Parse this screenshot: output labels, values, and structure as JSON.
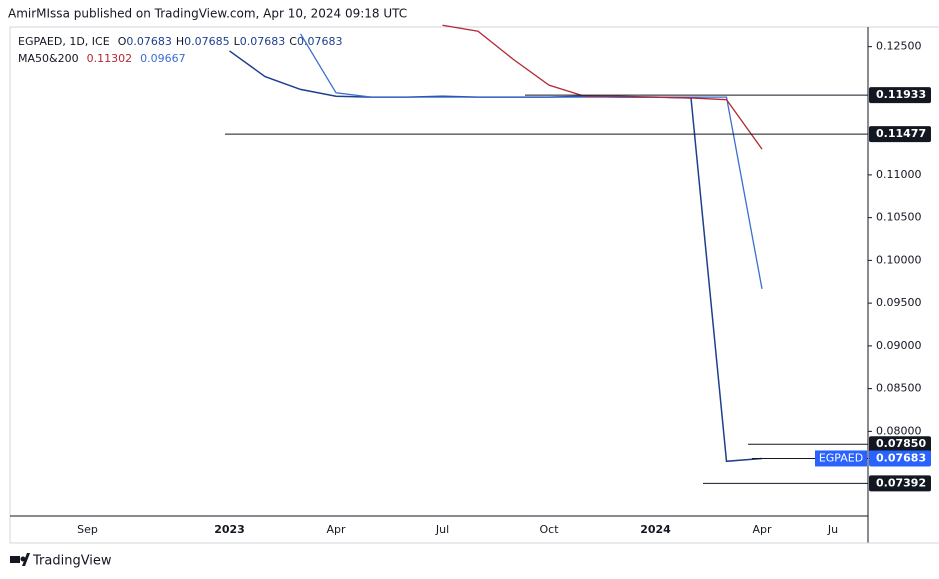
{
  "header": "AmirMIssa published on TradingView.com, Apr 10, 2024 09:18 UTC",
  "footer": "TradingView",
  "chart_data": {
    "type": "line",
    "symbol": "EGPAED, 1D, ICE",
    "ohlc": [
      {
        "name": "O",
        "value": 0.07683
      },
      {
        "name": "H",
        "value": 0.07685
      },
      {
        "name": "L",
        "value": 0.07683
      },
      {
        "name": "C",
        "value": 0.07683
      }
    ],
    "ma_label": "MA50&200",
    "categories": [
      null,
      "Sep",
      null,
      null,
      null,
      "2023",
      null,
      null,
      "Apr",
      null,
      null,
      "Jul",
      null,
      null,
      "Oct",
      null,
      null,
      "2024",
      null,
      null,
      "Apr",
      null,
      "Ju"
    ],
    "series": [
      {
        "name": "EGPAED",
        "color": "#1e3f8f",
        "values": [
          null,
          null,
          null,
          null,
          null,
          0.1245,
          0.1215,
          0.12,
          0.1192,
          0.1191,
          0.1191,
          0.1192,
          0.1191,
          0.1191,
          0.1191,
          0.1192,
          0.1191,
          0.1191,
          0.119,
          0.0765,
          0.07683,
          null,
          null
        ]
      },
      {
        "name": "MA50",
        "color": "#3a6fd0",
        "values": [
          null,
          null,
          null,
          null,
          null,
          null,
          null,
          0.1265,
          0.1196,
          0.1191,
          0.1191,
          0.1191,
          0.1191,
          0.1191,
          0.1191,
          0.1191,
          0.1191,
          0.1191,
          0.1191,
          0.1191,
          0.09667,
          null,
          null
        ],
        "value_label": 0.09667
      },
      {
        "name": "MA200",
        "color": "#b22833",
        "values": [
          null,
          null,
          null,
          null,
          null,
          null,
          null,
          null,
          null,
          null,
          null,
          0.1275,
          0.1268,
          0.1235,
          0.1205,
          0.1192,
          0.1192,
          0.1191,
          0.119,
          0.1188,
          0.11302,
          null,
          null
        ],
        "value_label": 0.11302
      }
    ],
    "ylim": [
      0.0701,
      0.1273
    ],
    "yticks": [
      {
        "value": 0.125,
        "label": "0.12500"
      },
      {
        "value": 0.11,
        "label": "0.11000"
      },
      {
        "value": 0.105,
        "label": "0.10500"
      },
      {
        "value": 0.1,
        "label": "0.10000"
      },
      {
        "value": 0.095,
        "label": "0.09500"
      },
      {
        "value": 0.09,
        "label": "0.09000"
      },
      {
        "value": 0.085,
        "label": "0.08500"
      },
      {
        "value": 0.08,
        "label": "0.08000"
      }
    ],
    "levels": [
      0.11933,
      0.11477,
      {
        "value": 0.0785,
        "label": "0.07850"
      },
      0.07392
    ],
    "last_price": 0.07683
  }
}
